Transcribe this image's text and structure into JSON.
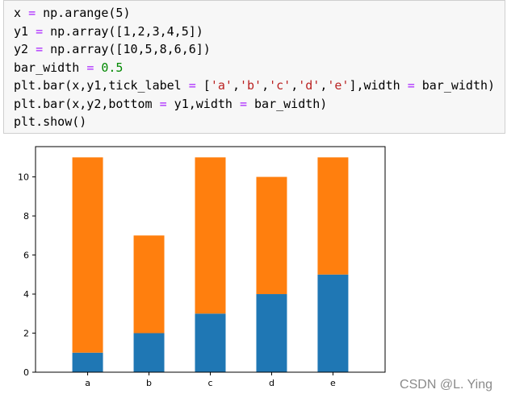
{
  "code_cell": {
    "lines": [
      [
        {
          "t": "x "
        },
        {
          "t": "=",
          "c": "op"
        },
        {
          "t": " np.arange(5)"
        }
      ],
      [
        {
          "t": "y1 "
        },
        {
          "t": "=",
          "c": "op"
        },
        {
          "t": " np.array([1,2,3,4,5])"
        }
      ],
      [
        {
          "t": "y2 "
        },
        {
          "t": "=",
          "c": "op"
        },
        {
          "t": " np.array([10,5,8,6,6])"
        }
      ],
      [
        {
          "t": "bar_width "
        },
        {
          "t": "=",
          "c": "op"
        },
        {
          "t": " "
        },
        {
          "t": "0.5",
          "c": "num"
        }
      ],
      [
        {
          "t": "plt.bar(x,y1,tick_label "
        },
        {
          "t": "=",
          "c": "op"
        },
        {
          "t": " ["
        },
        {
          "t": "'a'",
          "c": "str"
        },
        {
          "t": ","
        },
        {
          "t": "'b'",
          "c": "str"
        },
        {
          "t": ","
        },
        {
          "t": "'c'",
          "c": "str"
        },
        {
          "t": ","
        },
        {
          "t": "'d'",
          "c": "str"
        },
        {
          "t": ","
        },
        {
          "t": "'e'",
          "c": "str"
        },
        {
          "t": "],width "
        },
        {
          "t": "=",
          "c": "op"
        },
        {
          "t": " bar_width)"
        }
      ],
      [
        {
          "t": "plt.bar(x,y2,bottom "
        },
        {
          "t": "=",
          "c": "op"
        },
        {
          "t": " y1,width "
        },
        {
          "t": "=",
          "c": "op"
        },
        {
          "t": " bar_width)"
        }
      ],
      [
        {
          "t": "plt.show()"
        }
      ]
    ]
  },
  "chart_data": {
    "type": "bar",
    "stacked": true,
    "categories": [
      "a",
      "b",
      "c",
      "d",
      "e"
    ],
    "series": [
      {
        "values": [
          1,
          2,
          3,
          4,
          5
        ],
        "color": "#1f77b4"
      },
      {
        "values": [
          10,
          5,
          8,
          6,
          6
        ],
        "color": "#ff7f0e"
      }
    ],
    "bar_width": 0.5,
    "ylim": [
      0,
      11.55
    ],
    "yticks": [
      0,
      2,
      4,
      6,
      8,
      10
    ],
    "title": "",
    "xlabel": "",
    "ylabel": "",
    "grid": false,
    "legend": false
  },
  "watermark": "CSDN @L. Ying"
}
